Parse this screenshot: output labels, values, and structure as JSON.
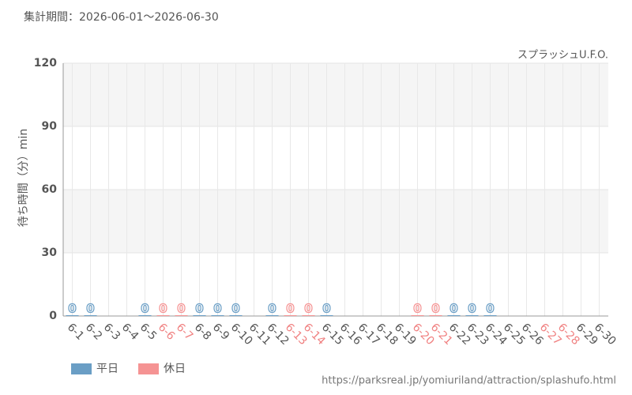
{
  "chart_data": {
    "type": "bar",
    "subtitle": "集計期間：2026-06-01～2026-06-30",
    "annotation": "スプラッシュU.F.O.",
    "y_label": "待ち時間（分）min",
    "source": "https://parksreal.jp/yomiuriland/attraction/splashufo.html",
    "categories": [
      "6-1",
      "6-2",
      "6-3",
      "6-4",
      "6-5",
      "6-6",
      "6-7",
      "6-8",
      "6-9",
      "6-10",
      "6-11",
      "6-12",
      "6-13",
      "6-14",
      "6-15",
      "6-16",
      "6-17",
      "6-18",
      "6-19",
      "6-20",
      "6-21",
      "6-22",
      "6-23",
      "6-24",
      "6-25",
      "6-26",
      "6-27",
      "6-28",
      "6-29",
      "6-30"
    ],
    "category_label_colors": [
      "#555",
      "#555",
      "#555",
      "#555",
      "#555",
      "#f08080",
      "#f08080",
      "#555",
      "#555",
      "#555",
      "#555",
      "#555",
      "#f08080",
      "#f08080",
      "#555",
      "#555",
      "#555",
      "#555",
      "#555",
      "#f08080",
      "#f08080",
      "#555",
      "#555",
      "#555",
      "#555",
      "#555",
      "#f08080",
      "#f08080",
      "#555",
      "#555"
    ],
    "series": [
      {
        "name": "平日",
        "color": "#6a9ec5",
        "values": [
          0,
          0,
          null,
          null,
          0,
          null,
          null,
          0,
          0,
          0,
          null,
          0,
          null,
          null,
          0,
          null,
          null,
          null,
          null,
          null,
          null,
          0,
          0,
          0,
          null,
          null,
          null,
          null,
          null,
          null
        ]
      },
      {
        "name": "休日",
        "color": "#f59393",
        "values": [
          null,
          null,
          null,
          null,
          null,
          0,
          0,
          null,
          null,
          null,
          null,
          null,
          0,
          0,
          null,
          null,
          null,
          null,
          null,
          0,
          0,
          null,
          null,
          null,
          null,
          null,
          null,
          null,
          null,
          null
        ]
      }
    ],
    "ylim": [
      0,
      120
    ],
    "yticks": [
      0,
      30,
      60,
      90,
      120
    ],
    "grid": true,
    "legend": "bottom-left"
  }
}
